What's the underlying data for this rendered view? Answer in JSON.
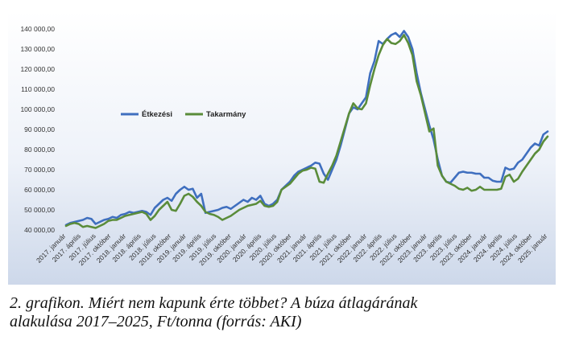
{
  "caption": {
    "line1": "2. grafikon. Miért nem kapunk érte többet? A búza átlagárának",
    "line2": "alakulása 2017–2025, Ft/tonna (forrás: AKI)"
  },
  "chart_data": {
    "type": "line",
    "title": "",
    "xlabel": "",
    "ylabel": "",
    "ylim": [
      40000,
      140000
    ],
    "y_ticks": [
      "40 000,00",
      "50 000,00",
      "60 000,00",
      "70 000,00",
      "80 000,00",
      "90 000,00",
      "100 000,00",
      "110 000,00",
      "120 000,00",
      "130 000,00",
      "140 000,00"
    ],
    "tick_labels": [
      "2017. január",
      "2017. április",
      "2017. július",
      "2017. október",
      "2018. január",
      "2018. április",
      "2018. július",
      "2018. október",
      "2019. január",
      "2019. április",
      "2019. július",
      "2019. október",
      "2020. január",
      "2020. április",
      "2020. július",
      "2020. október",
      "2021. január",
      "2021. április",
      "2021. július",
      "2021. október",
      "2022. január",
      "2022. április",
      "2022. július",
      "2022. október",
      "2023. január",
      "2023. április",
      "2023. július",
      "2023. október",
      "2024. január",
      "2024. április",
      "2024. július",
      "2024. október",
      "2025. január"
    ],
    "legend_position": "upper-left",
    "grid": false,
    "series": [
      {
        "name": "Étkezési",
        "color": "#3f6fbf",
        "values": [
          42500,
          43500,
          44000,
          44500,
          45000,
          46000,
          45500,
          43000,
          44000,
          45000,
          45500,
          46500,
          46000,
          47500,
          48000,
          49000,
          48500,
          49000,
          49500,
          49000,
          47500,
          51000,
          53000,
          55000,
          56000,
          54500,
          58000,
          60000,
          61500,
          60000,
          60500,
          56000,
          58000,
          48500,
          49000,
          49500,
          50000,
          51000,
          51500,
          50500,
          52000,
          53500,
          55000,
          54000,
          56000,
          55000,
          57000,
          53000,
          52000,
          53000,
          55000,
          60000,
          62000,
          64000,
          67000,
          69000,
          70000,
          71000,
          72000,
          73500,
          73000,
          68000,
          65000,
          70000,
          75000,
          82000,
          90000,
          98000,
          101000,
          100000,
          103000,
          106000,
          118000,
          124000,
          134000,
          132500,
          135000,
          137000,
          138000,
          136000,
          139000,
          136000,
          130000,
          118000,
          108000,
          100000,
          92000,
          85000,
          75000,
          67000,
          64000,
          63500,
          66000,
          68500,
          69000,
          68500,
          68500,
          68000,
          68000,
          66000,
          66000,
          64500,
          64000,
          64000,
          71000,
          70000,
          70500,
          73500,
          75000,
          78000,
          81000,
          83000,
          82000,
          87500,
          89000
        ]
      },
      {
        "name": "Takarmány",
        "color": "#5a8c3a",
        "values": [
          42000,
          43000,
          43500,
          43000,
          41500,
          42000,
          41500,
          41000,
          42000,
          43000,
          44500,
          45000,
          45000,
          46000,
          47000,
          47500,
          48000,
          48500,
          49000,
          48000,
          45000,
          47000,
          50000,
          52000,
          54000,
          50000,
          49500,
          53000,
          57000,
          58000,
          56500,
          54000,
          52000,
          49000,
          48000,
          47500,
          46500,
          45000,
          46000,
          47000,
          48500,
          50000,
          51000,
          52000,
          52500,
          53000,
          54500,
          52000,
          51500,
          52000,
          54000,
          60000,
          61500,
          63000,
          65500,
          68000,
          69500,
          70000,
          71000,
          70500,
          64000,
          63500,
          68000,
          72000,
          77000,
          84000,
          91000,
          98000,
          103000,
          100500,
          100000,
          103000,
          112000,
          120000,
          127000,
          132000,
          135000,
          133000,
          132500,
          134000,
          137000,
          133000,
          127000,
          114000,
          107000,
          98000,
          89000,
          90500,
          72000,
          67000,
          64000,
          63000,
          62000,
          60500,
          60000,
          61000,
          59500,
          60000,
          61500,
          60000,
          60000,
          60000,
          60000,
          60500,
          66500,
          67500,
          64000,
          65500,
          69000,
          72000,
          75000,
          78000,
          80000,
          84000,
          86500
        ]
      }
    ]
  }
}
